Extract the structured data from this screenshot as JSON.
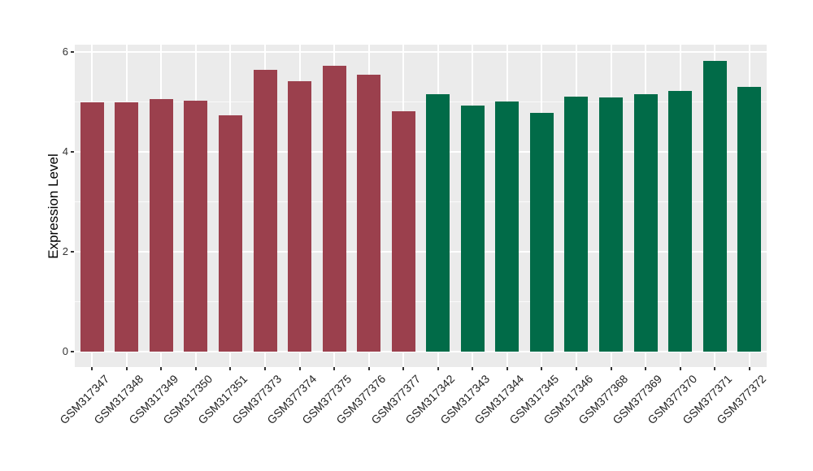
{
  "chart_data": {
    "type": "bar",
    "title": "",
    "xlabel": "",
    "ylabel": "Expression Level",
    "ylim": [
      0,
      6
    ],
    "yticks": [
      0,
      2,
      4,
      6
    ],
    "yticks_minor": [
      1,
      3,
      5
    ],
    "grid": true,
    "legend": "none",
    "panel_background": "#EBEBEB",
    "gridline_color": "#FFFFFF",
    "axis_text_color": "#333333",
    "axis_title_color": "#000000",
    "groups": [
      {
        "name": "group-1",
        "color": "#9B404D"
      },
      {
        "name": "group-2",
        "color": "#016B48"
      }
    ],
    "categories": [
      "GSM317347",
      "GSM317348",
      "GSM317349",
      "GSM317350",
      "GSM317351",
      "GSM377373",
      "GSM377374",
      "GSM377375",
      "GSM377376",
      "GSM377377",
      "GSM317342",
      "GSM317343",
      "GSM317344",
      "GSM317345",
      "GSM317346",
      "GSM377368",
      "GSM377369",
      "GSM377370",
      "GSM377371",
      "GSM377372"
    ],
    "bars": [
      {
        "label": "GSM317347",
        "value": 4.99,
        "group": 0
      },
      {
        "label": "GSM317348",
        "value": 4.99,
        "group": 0
      },
      {
        "label": "GSM317349",
        "value": 5.05,
        "group": 0
      },
      {
        "label": "GSM317350",
        "value": 5.03,
        "group": 0
      },
      {
        "label": "GSM317351",
        "value": 4.73,
        "group": 0
      },
      {
        "label": "GSM377373",
        "value": 5.64,
        "group": 0
      },
      {
        "label": "GSM377374",
        "value": 5.42,
        "group": 0
      },
      {
        "label": "GSM377375",
        "value": 5.72,
        "group": 0
      },
      {
        "label": "GSM377376",
        "value": 5.54,
        "group": 0
      },
      {
        "label": "GSM377377",
        "value": 4.81,
        "group": 0
      },
      {
        "label": "GSM317342",
        "value": 5.15,
        "group": 1
      },
      {
        "label": "GSM317343",
        "value": 4.93,
        "group": 1
      },
      {
        "label": "GSM317344",
        "value": 5.01,
        "group": 1
      },
      {
        "label": "GSM317345",
        "value": 4.78,
        "group": 1
      },
      {
        "label": "GSM317346",
        "value": 5.1,
        "group": 1
      },
      {
        "label": "GSM377368",
        "value": 5.09,
        "group": 1
      },
      {
        "label": "GSM377369",
        "value": 5.15,
        "group": 1
      },
      {
        "label": "GSM377370",
        "value": 5.22,
        "group": 1
      },
      {
        "label": "GSM377371",
        "value": 5.82,
        "group": 1
      },
      {
        "label": "GSM377372",
        "value": 5.3,
        "group": 1
      }
    ]
  }
}
